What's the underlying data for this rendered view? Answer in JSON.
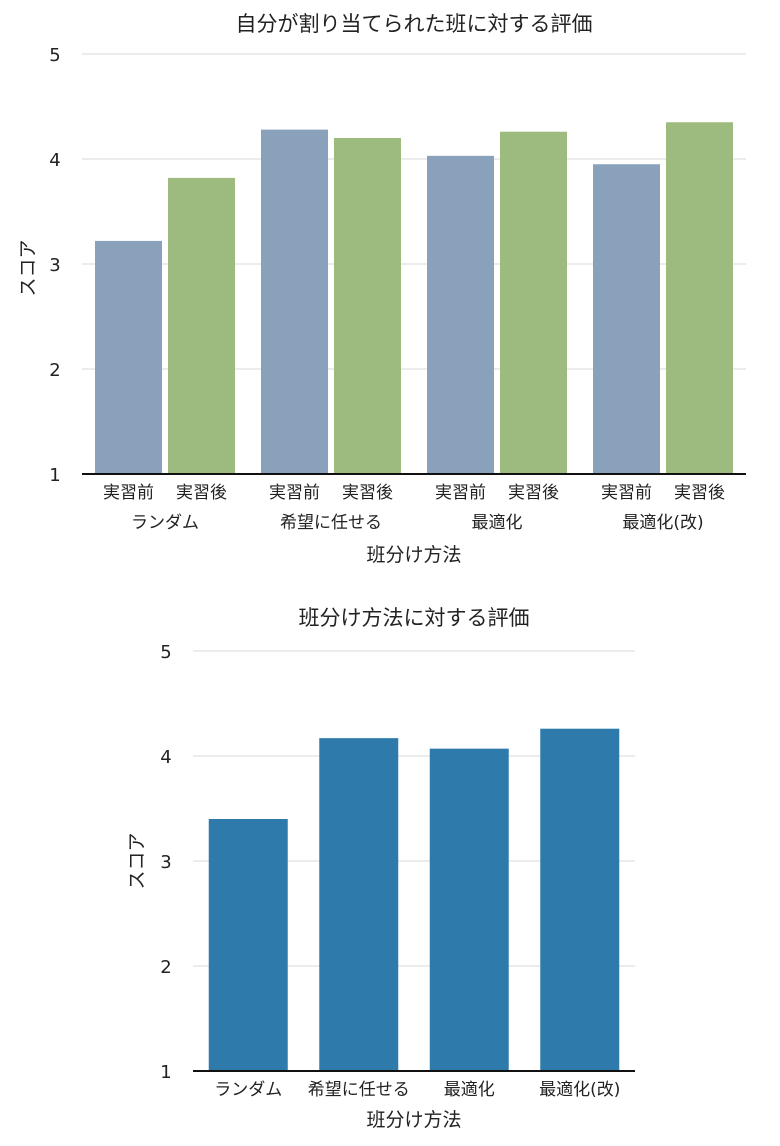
{
  "chart_data": [
    {
      "type": "bar",
      "title": "自分が割り当てられた班に対する評価",
      "xlabel": "班分け方法",
      "ylabel": "スコア",
      "ylim": [
        1,
        5
      ],
      "yticks": [
        1,
        2,
        3,
        4,
        5
      ],
      "grid": true,
      "categories": [
        "ランダム",
        "希望に任せる",
        "最適化",
        "最適化(改)"
      ],
      "subcategories": [
        "実習前",
        "実習後"
      ],
      "series": [
        {
          "name": "実習前",
          "color": "#8aa1bb",
          "values": [
            3.22,
            4.28,
            4.03,
            3.95
          ]
        },
        {
          "name": "実習後",
          "color": "#9dba7f",
          "values": [
            3.82,
            4.2,
            4.26,
            4.35
          ]
        }
      ]
    },
    {
      "type": "bar",
      "title": "班分け方法に対する評価",
      "xlabel": "班分け方法",
      "ylabel": "スコア",
      "ylim": [
        1,
        5
      ],
      "yticks": [
        1,
        2,
        3,
        4,
        5
      ],
      "grid": true,
      "categories": [
        "ランダム",
        "希望に任せる",
        "最適化",
        "最適化(改)"
      ],
      "color": "#2e7bab",
      "values": [
        3.4,
        4.17,
        4.07,
        4.26
      ]
    }
  ]
}
